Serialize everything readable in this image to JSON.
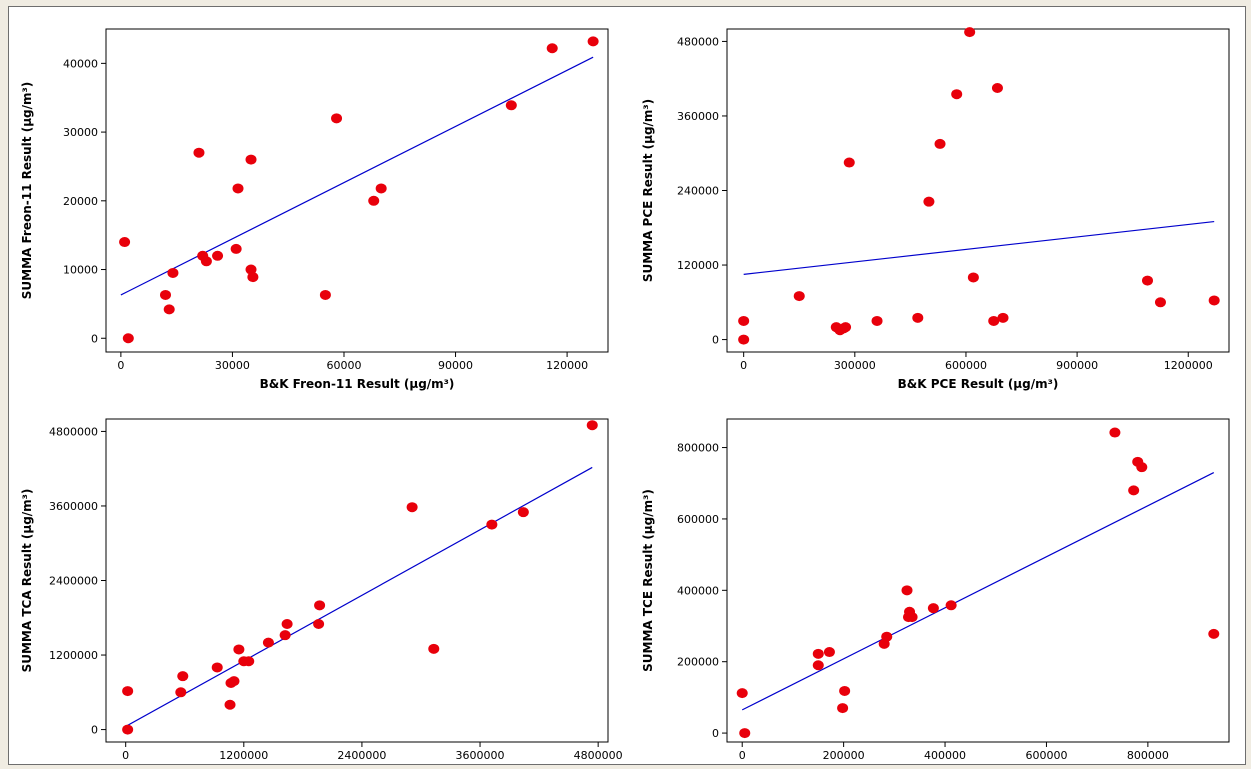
{
  "chart_data": [
    {
      "type": "scatter",
      "xlabel": "B&K Freon-11 Result (μg/m³)",
      "ylabel": "SUMMA Freon-11 Result (μg/m³)",
      "xlim": [
        -4000,
        131000
      ],
      "ylim": [
        -2000,
        45000
      ],
      "xticks": [
        0,
        30000,
        60000,
        90000,
        120000
      ],
      "yticks": [
        0,
        10000,
        20000,
        30000,
        40000
      ],
      "point_color": "#e8000b",
      "fit_color": "#0000cc",
      "x": [
        1000,
        2000,
        12000,
        13000,
        14000,
        21000,
        22000,
        23000,
        26000,
        31000,
        31500,
        35000,
        35000,
        35500,
        55000,
        58000,
        68000,
        70000,
        105000,
        116000,
        127000
      ],
      "y": [
        14000,
        0,
        6300,
        4200,
        9500,
        27000,
        12000,
        11200,
        12000,
        13000,
        21800,
        26000,
        10000,
        8900,
        6300,
        32000,
        20000,
        21800,
        33900,
        42200,
        43200
      ],
      "fit_line": [
        [
          0,
          6300
        ],
        [
          127000,
          40900
        ]
      ]
    },
    {
      "type": "scatter",
      "xlabel": "B&K PCE Result (μg/m³)",
      "ylabel": "SUMMA PCE Result (μg/m³)",
      "xlim": [
        -45000,
        1310000
      ],
      "ylim": [
        -20000,
        500000
      ],
      "xticks": [
        0,
        300000,
        600000,
        900000,
        1200000
      ],
      "yticks": [
        0,
        120000,
        240000,
        360000,
        480000
      ],
      "point_color": "#e8000b",
      "fit_color": "#0000cc",
      "x": [
        0,
        0,
        150000,
        250000,
        260000,
        270000,
        275000,
        285000,
        360000,
        470000,
        500000,
        530000,
        575000,
        610000,
        620000,
        675000,
        685000,
        700000,
        1090000,
        1125000,
        1270000
      ],
      "y": [
        30000,
        0,
        70000,
        20000,
        15000,
        18000,
        20000,
        285000,
        30000,
        35000,
        222000,
        315000,
        395000,
        495000,
        100000,
        30000,
        405000,
        35000,
        95000,
        60000,
        63000
      ],
      "fit_line": [
        [
          0,
          105000
        ],
        [
          1270000,
          190000
        ]
      ]
    },
    {
      "type": "scatter",
      "xlabel": "B&K TCA Result (μg/m³)",
      "ylabel": "SUMMA TCA Result (μg/m³)",
      "xlim": [
        -200000,
        4900000
      ],
      "ylim": [
        -200000,
        5000000
      ],
      "xticks": [
        0,
        1200000,
        2400000,
        3600000,
        4800000
      ],
      "yticks": [
        0,
        1200000,
        2400000,
        3600000,
        4800000
      ],
      "point_color": "#e8000b",
      "fit_color": "#0000cc",
      "x": [
        20000,
        20000,
        560000,
        580000,
        930000,
        1060000,
        1070000,
        1100000,
        1150000,
        1200000,
        1250000,
        1450000,
        1620000,
        1640000,
        1960000,
        1970000,
        2910000,
        3130000,
        3720000,
        4040000,
        4740000
      ],
      "y": [
        620000,
        0,
        600000,
        860000,
        1000000,
        400000,
        750000,
        780000,
        1290000,
        1100000,
        1100000,
        1400000,
        1520000,
        1700000,
        1700000,
        2000000,
        3580000,
        1300000,
        3300000,
        3500000,
        4900000
      ],
      "fit_line": [
        [
          0,
          50000
        ],
        [
          4740000,
          4220000
        ]
      ]
    },
    {
      "type": "scatter",
      "xlabel": "B&K TCE Result (μg/m³)",
      "ylabel": "SUMMA TCE Result (μg/m³)",
      "xlim": [
        -30000,
        960000
      ],
      "ylim": [
        -25000,
        880000
      ],
      "xticks": [
        0,
        200000,
        400000,
        600000,
        800000
      ],
      "yticks": [
        0,
        200000,
        400000,
        600000,
        800000
      ],
      "point_color": "#e8000b",
      "fit_color": "#0000cc",
      "x": [
        0,
        5000,
        150000,
        150000,
        172000,
        198000,
        202000,
        280000,
        285000,
        325000,
        328000,
        330000,
        335000,
        377000,
        412000,
        735000,
        772000,
        780000,
        788000,
        930000
      ],
      "y": [
        112000,
        0,
        190000,
        222000,
        227000,
        70000,
        118000,
        250000,
        270000,
        400000,
        325000,
        340000,
        325000,
        350000,
        358000,
        842000,
        680000,
        760000,
        745000,
        278000
      ],
      "fit_line": [
        [
          0,
          65000
        ],
        [
          930000,
          730000
        ]
      ]
    }
  ]
}
